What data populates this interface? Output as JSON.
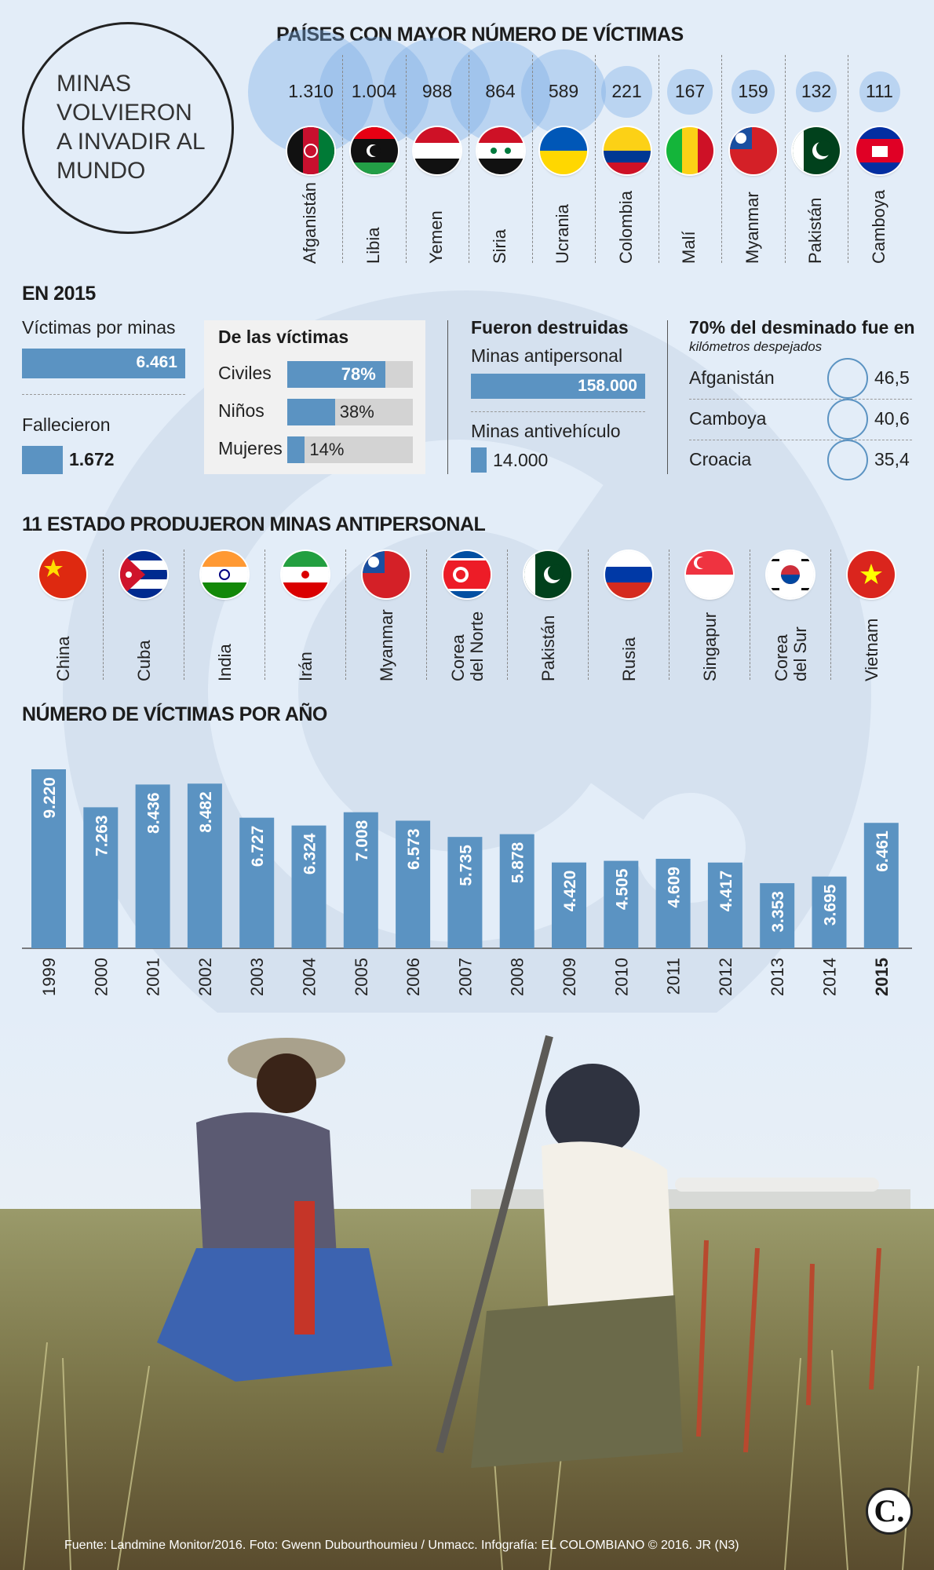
{
  "title": "MINAS\nVOLVIERON\nA INVADIR AL\nMUNDO",
  "top_countries": {
    "heading": "PAÍSES CON MAYOR NÚMERO DE VÍCTIMAS",
    "items": [
      {
        "name": "Afganistán",
        "value": "1.310",
        "v": 1310,
        "flag": "afghanistan-flag"
      },
      {
        "name": "Libia",
        "value": "1.004",
        "v": 1004,
        "flag": "libya-flag"
      },
      {
        "name": "Yemen",
        "value": "988",
        "v": 988,
        "flag": "yemen-flag"
      },
      {
        "name": "Siria",
        "value": "864",
        "v": 864,
        "flag": "syria-flag"
      },
      {
        "name": "Ucrania",
        "value": "589",
        "v": 589,
        "flag": "ukraine-flag"
      },
      {
        "name": "Colombia",
        "value": "221",
        "v": 221,
        "flag": "colombia-flag"
      },
      {
        "name": "Malí",
        "value": "167",
        "v": 167,
        "flag": "mali-flag"
      },
      {
        "name": "Myanmar",
        "value": "159",
        "v": 159,
        "flag": "myanmar-flag"
      },
      {
        "name": "Pakistán",
        "value": "132",
        "v": 132,
        "flag": "pakistan-flag"
      },
      {
        "name": "Camboya",
        "value": "111",
        "v": 111,
        "flag": "cambodia-flag"
      }
    ]
  },
  "en2015": {
    "heading": "EN 2015",
    "victims_label": "Víctimas por minas",
    "victims_value": "6.461",
    "dead_label": "Fallecieron",
    "dead_value": "1.672",
    "breakdown_heading": "De las víctimas",
    "breakdown": [
      {
        "label": "Civiles",
        "value": "78%",
        "pct": 78
      },
      {
        "label": "Niños",
        "value": "38%",
        "pct": 38
      },
      {
        "label": "Mujeres",
        "value": "14%",
        "pct": 14
      }
    ],
    "destroyed_heading": "Fueron destruidas",
    "ap_label": "Minas antipersonal",
    "ap_value": "158.000",
    "av_label": "Minas antivehículo",
    "av_value": "14.000",
    "demining_heading": "70% del desminado fue en",
    "demining_sub": "kilómetros despejados",
    "demining": [
      {
        "country": "Afganistán",
        "value": "46,5"
      },
      {
        "country": "Camboya",
        "value": "40,6"
      },
      {
        "country": "Croacia",
        "value": "35,4"
      }
    ]
  },
  "producers": {
    "heading": "11 ESTADO PRODUJERON MINAS ANTIPERSONAL",
    "items": [
      {
        "name": "China",
        "flag": "china-flag"
      },
      {
        "name": "Cuba",
        "flag": "cuba-flag"
      },
      {
        "name": "India",
        "flag": "india-flag"
      },
      {
        "name": "Irán",
        "flag": "iran-flag"
      },
      {
        "name": "Myanmar",
        "flag": "myanmar-flag"
      },
      {
        "name": "Corea\ndel Norte",
        "flag": "north-korea-flag"
      },
      {
        "name": "Pakistán",
        "flag": "pakistan-flag"
      },
      {
        "name": "Rusia",
        "flag": "russia-flag"
      },
      {
        "name": "Singapur",
        "flag": "singapore-flag"
      },
      {
        "name": "Corea\ndel Sur",
        "flag": "south-korea-flag"
      },
      {
        "name": "Vietnam",
        "flag": "vietnam-flag"
      }
    ]
  },
  "chart_heading": "NÚMERO DE VÍCTIMAS POR AÑO",
  "chart_data": {
    "type": "bar",
    "title": "NÚMERO DE VÍCTIMAS POR AÑO",
    "categories": [
      "1999",
      "2000",
      "2001",
      "2002",
      "2003",
      "2004",
      "2005",
      "2006",
      "2007",
      "2008",
      "2009",
      "2010",
      "2011",
      "2012",
      "2013",
      "2014",
      "2015"
    ],
    "values": [
      9220,
      7263,
      8436,
      8482,
      6727,
      6324,
      7008,
      6573,
      5735,
      5878,
      4420,
      4505,
      4609,
      4417,
      3353,
      3695,
      6461
    ],
    "labels": [
      "9.220",
      "7.263",
      "8.436",
      "8.482",
      "6.727",
      "6.324",
      "7.008",
      "6.573",
      "5.735",
      "5.878",
      "4.420",
      "4.505",
      "4.609",
      "4.417",
      "3.353",
      "3.695",
      "6.461"
    ],
    "color": "#5b93c2",
    "highlight": "2015"
  },
  "source": "Fuente: Landmine Monitor/2016. Foto: Gwenn Dubourthoumieu / Unmacc. Infografía: EL COLOMBIANO © 2016. JR (N3)",
  "logo_text": "C.",
  "colors": {
    "accent": "#5b93c2",
    "background": "#e3edf8"
  }
}
